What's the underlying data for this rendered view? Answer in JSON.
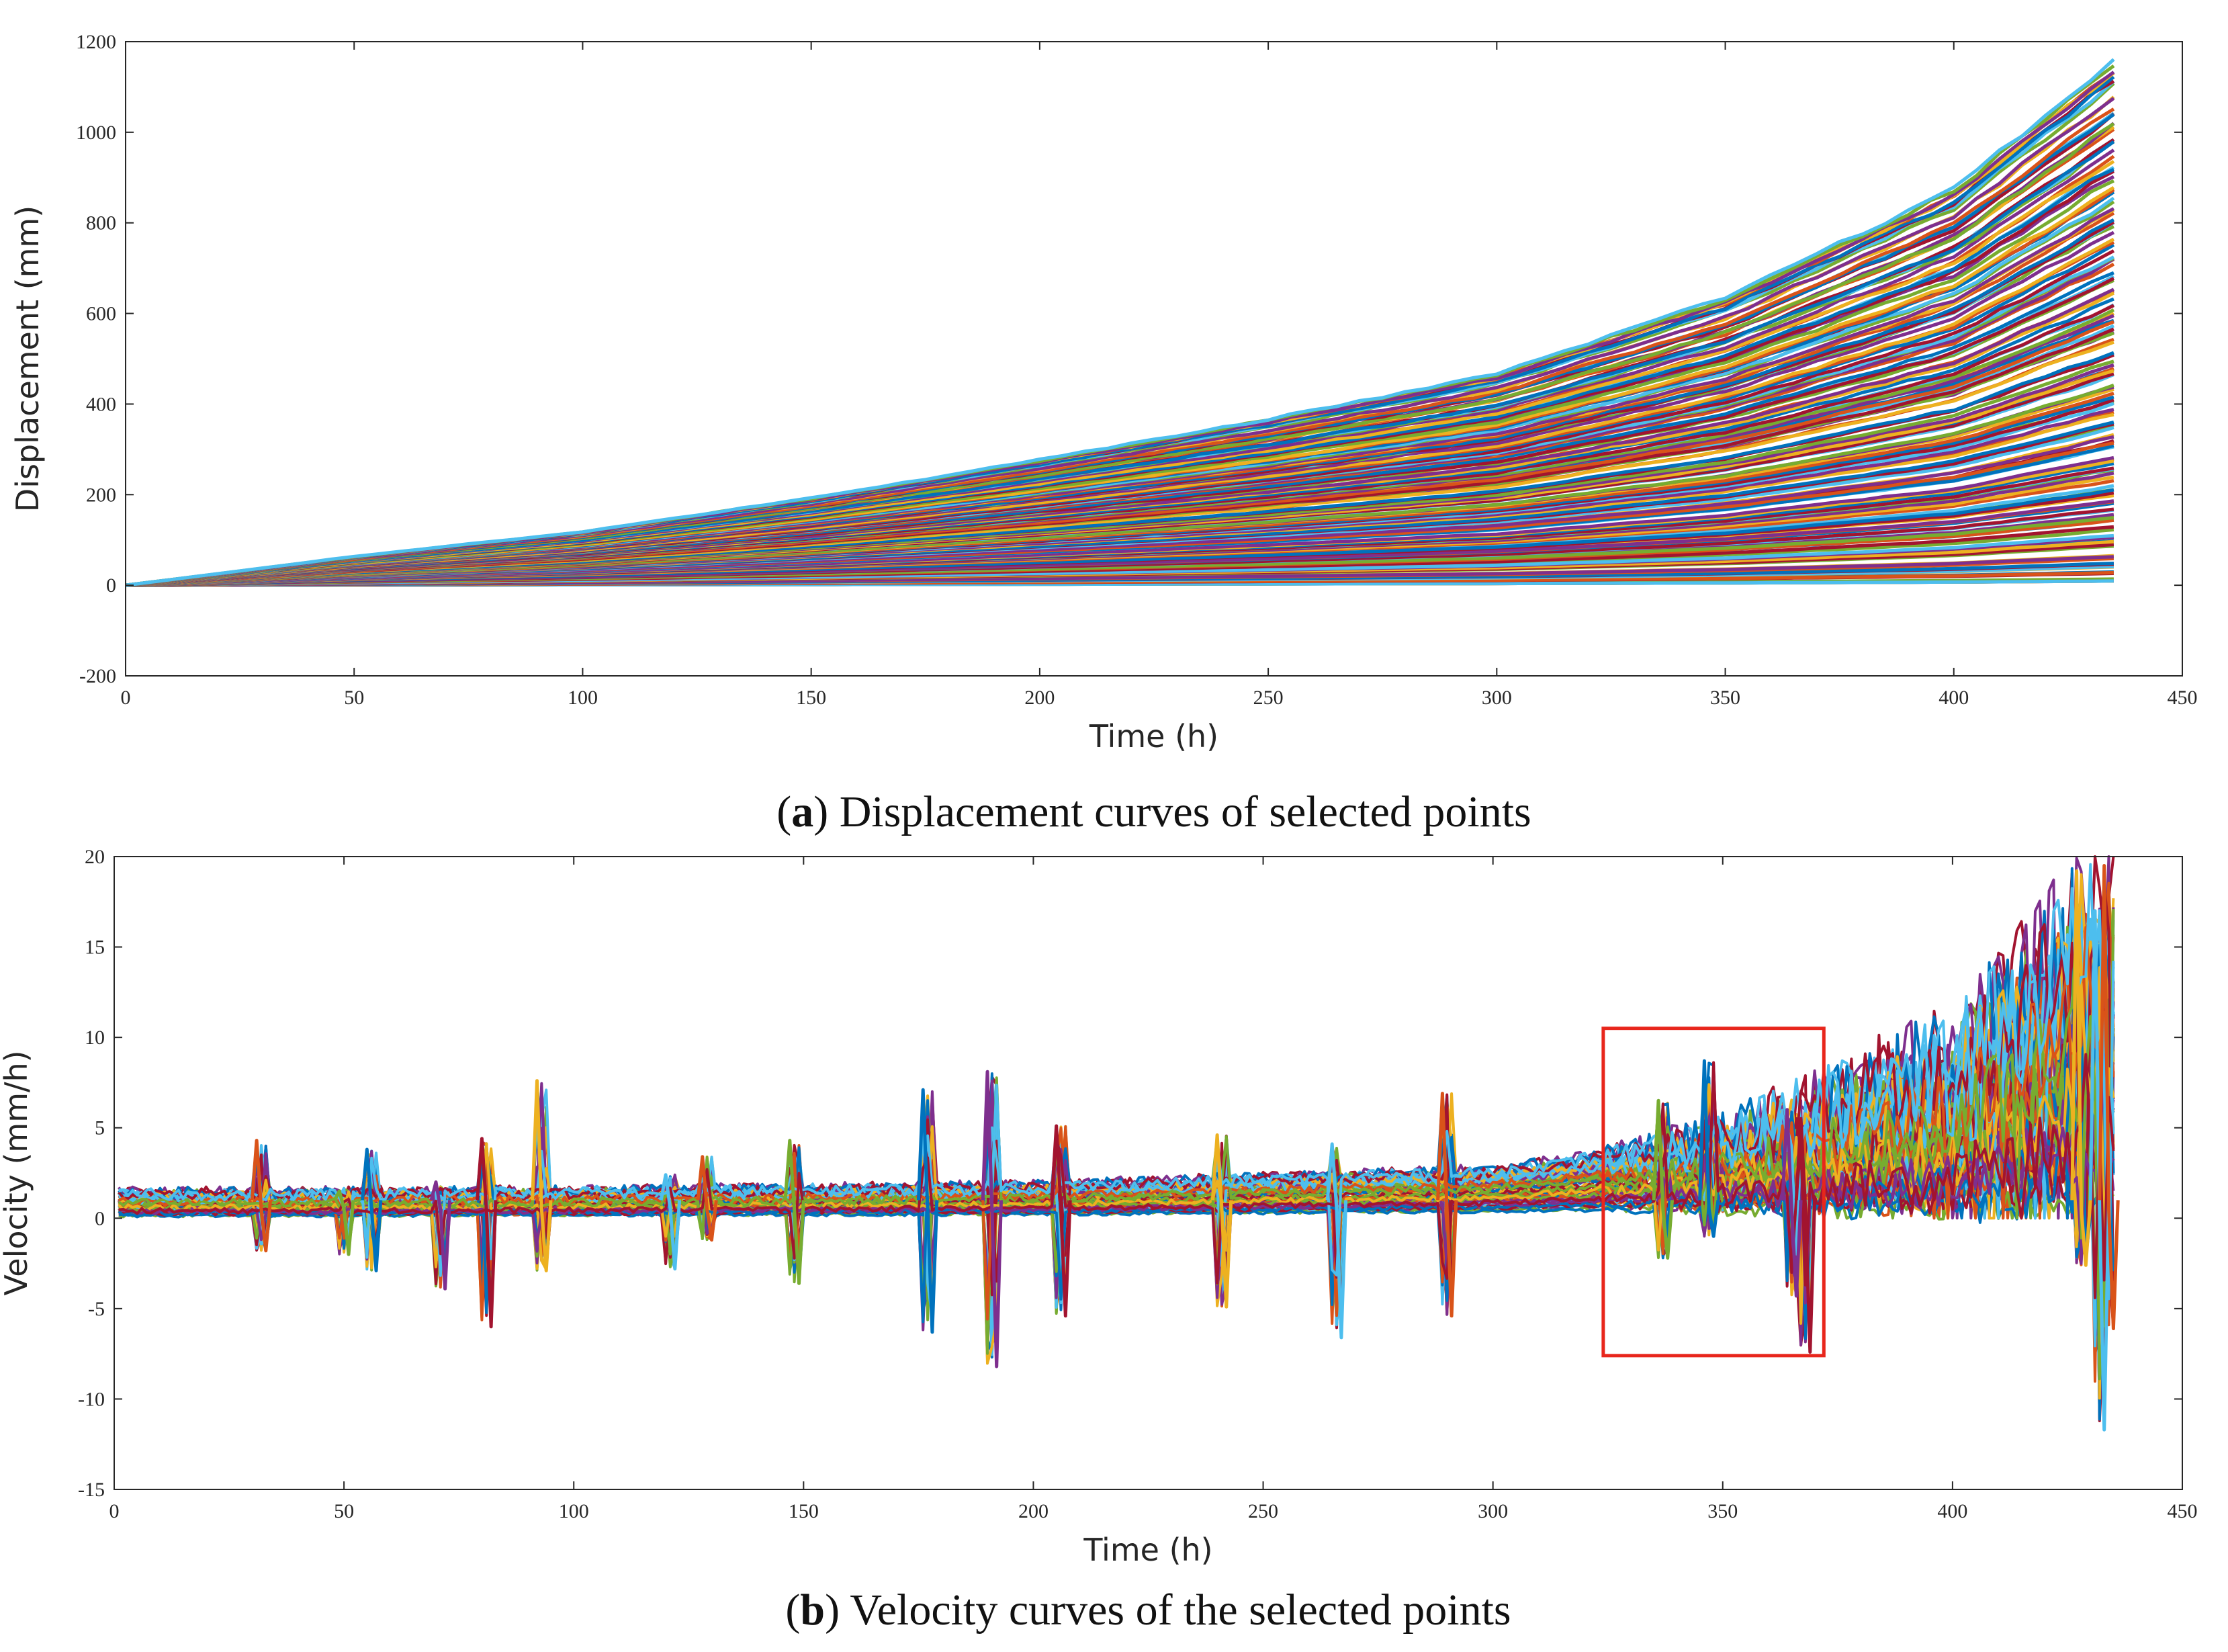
{
  "colors": {
    "axis": "#262626",
    "highlight_box": "#e8261c",
    "series_palette": [
      "#0072BD",
      "#D95319",
      "#EDB120",
      "#7E2F8E",
      "#77AC30",
      "#4DBEEE",
      "#A2142F"
    ]
  },
  "chart_data": [
    {
      "panel": "a",
      "type": "line",
      "caption_letter": "a",
      "caption_text": "Displacement curves of selected points",
      "xlabel": "Time (h)",
      "ylabel": "Displacement (mm)",
      "xlim": [
        0,
        450
      ],
      "ylim": [
        -200,
        1200
      ],
      "xticks": [
        0,
        50,
        100,
        150,
        200,
        250,
        300,
        350,
        400,
        450
      ],
      "yticks": [
        -200,
        0,
        200,
        400,
        600,
        800,
        1000,
        1200
      ],
      "grid": false,
      "series_summary": {
        "count_approx": 300,
        "t_end": 435,
        "start_value": 0,
        "final_value_range": [
          10,
          1165
        ],
        "upper_envelope": [
          [
            0,
            0
          ],
          [
            50,
            65
          ],
          [
            100,
            120
          ],
          [
            150,
            195
          ],
          [
            200,
            280
          ],
          [
            250,
            370
          ],
          [
            300,
            470
          ],
          [
            350,
            640
          ],
          [
            400,
            880
          ],
          [
            435,
            1165
          ]
        ]
      }
    },
    {
      "panel": "b",
      "type": "line",
      "caption_letter": "b",
      "caption_text": "Velocity curves of the selected points",
      "xlabel": "Time (h)",
      "ylabel": "Velocity (mm/h)",
      "xlim": [
        0,
        450
      ],
      "ylim": [
        -15,
        20
      ],
      "xticks": [
        0,
        50,
        100,
        150,
        200,
        250,
        300,
        350,
        400,
        450
      ],
      "yticks": [
        -15,
        -10,
        -5,
        0,
        5,
        10,
        15,
        20
      ],
      "grid": false,
      "highlight_box": {
        "x_range": [
          324,
          372
        ],
        "y_range": [
          -7.6,
          10.5
        ]
      },
      "series_summary": {
        "count_approx": 300,
        "t_end": 435,
        "baseline_band": [
          [
            0,
            0.5,
            1.4
          ],
          [
            100,
            0.6,
            1.5
          ],
          [
            200,
            0.8,
            1.8
          ],
          [
            300,
            1.3,
            2.7
          ],
          [
            350,
            1.8,
            4.5
          ],
          [
            400,
            2.5,
            8.5
          ],
          [
            435,
            5.0,
            18.0
          ]
        ],
        "spike_events": [
          {
            "t": 32,
            "max": 4.3,
            "min": -1.8
          },
          {
            "t": 50,
            "max": 1.5,
            "min": -2.0
          },
          {
            "t": 56,
            "max": 3.8,
            "min": -2.9
          },
          {
            "t": 71,
            "max": 2.0,
            "min": -3.9
          },
          {
            "t": 81,
            "max": 4.4,
            "min": -6.0
          },
          {
            "t": 93,
            "max": 7.6,
            "min": -2.9
          },
          {
            "t": 121,
            "max": 2.4,
            "min": -2.8
          },
          {
            "t": 129,
            "max": 3.4,
            "min": -1.2
          },
          {
            "t": 148,
            "max": 4.3,
            "min": -3.6
          },
          {
            "t": 177,
            "max": 7.1,
            "min": -6.3
          },
          {
            "t": 191,
            "max": 8.1,
            "min": -8.2
          },
          {
            "t": 206,
            "max": 5.1,
            "min": -5.4
          },
          {
            "t": 241,
            "max": 4.6,
            "min": -4.9
          },
          {
            "t": 266,
            "max": 4.1,
            "min": -6.6
          },
          {
            "t": 290,
            "max": 6.9,
            "min": -5.4
          },
          {
            "t": 337,
            "max": 6.5,
            "min": -2.2
          },
          {
            "t": 347,
            "max": 8.7,
            "min": -1.0
          },
          {
            "t": 365,
            "max": 6.0,
            "min": -4.3
          },
          {
            "t": 368,
            "max": 5.5,
            "min": -7.4
          },
          {
            "t": 428,
            "max": 19.2,
            "min": -2.6
          },
          {
            "t": 432,
            "max": 17.0,
            "min": -11.7
          },
          {
            "t": 434,
            "max": 19.5,
            "min": -6.1
          }
        ]
      }
    }
  ]
}
